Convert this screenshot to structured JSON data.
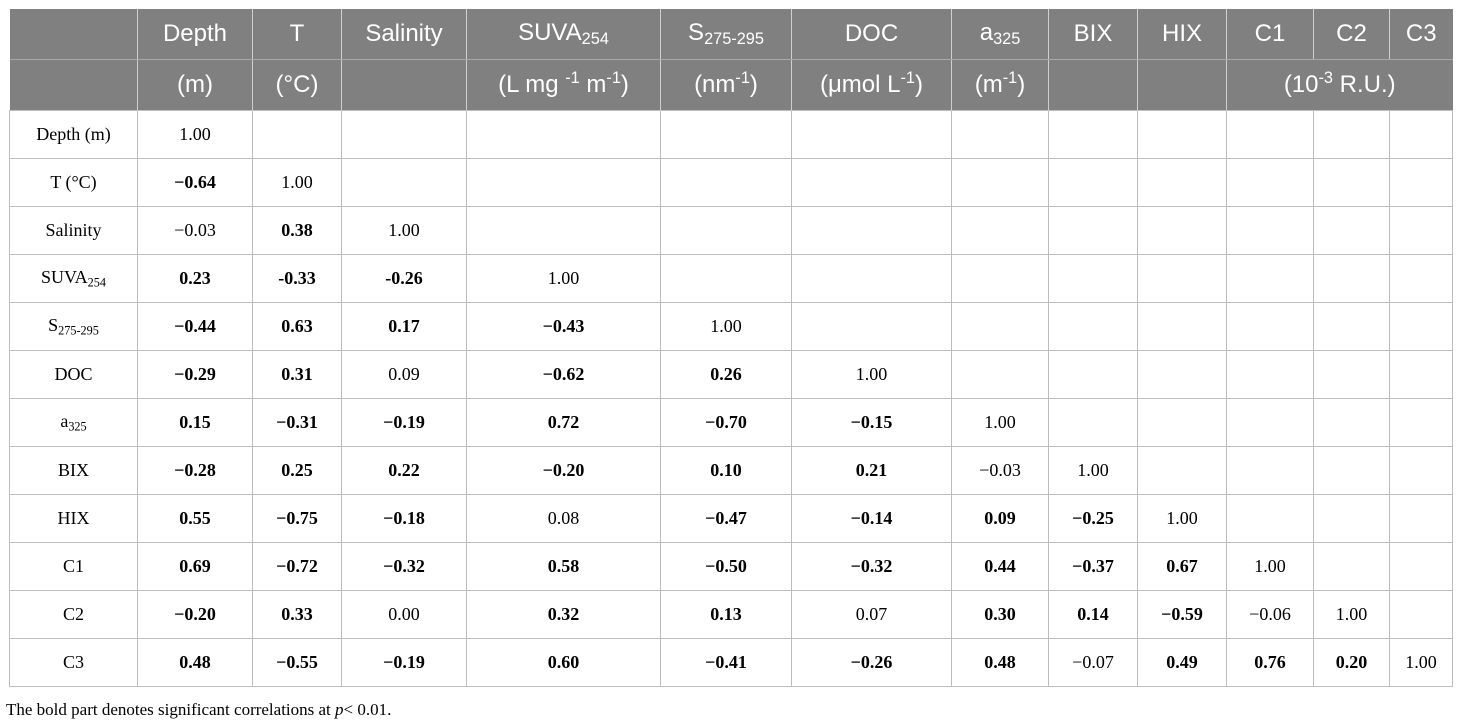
{
  "header": {
    "columns": [
      {
        "name": "Depth",
        "unit": "(m)"
      },
      {
        "name": "T",
        "unit": "(°C)"
      },
      {
        "name": "Salinity",
        "unit": ""
      },
      {
        "name": "SUVA",
        "name_sub": "254",
        "unit": "(L mg",
        "unit_sup": "-1",
        "unit_tail": " m",
        "unit_sup2": "-1",
        "unit_end": ")"
      },
      {
        "name": "S",
        "name_sub": "275-295",
        "unit": "(nm",
        "unit_sup": "-1",
        "unit_end": ")"
      },
      {
        "name": "DOC",
        "unit": "(μmol L",
        "unit_sup": "-1",
        "unit_end": ")"
      },
      {
        "name": "a",
        "name_sub": "325",
        "unit": "(m",
        "unit_sup": "-1",
        "unit_end": ")"
      },
      {
        "name": "BIX",
        "unit": ""
      },
      {
        "name": "HIX",
        "unit": ""
      },
      {
        "name": "C1"
      },
      {
        "name": "C2"
      },
      {
        "name": "C3"
      }
    ],
    "c_unit": "(10",
    "c_unit_sup": "-3",
    "c_unit_end": " R.U.)"
  },
  "rows": [
    {
      "label": "Depth (m)",
      "values": [
        {
          "v": "1.00",
          "b": false
        }
      ]
    },
    {
      "label": "T (°C)",
      "values": [
        {
          "v": "−0.64",
          "b": true
        },
        {
          "v": "1.00",
          "b": false
        }
      ]
    },
    {
      "label": "Salinity",
      "values": [
        {
          "v": "−0.03",
          "b": false
        },
        {
          "v": "0.38",
          "b": true
        },
        {
          "v": "1.00",
          "b": false
        }
      ]
    },
    {
      "label": "SUVA",
      "label_sub": "254",
      "values": [
        {
          "v": "0.23",
          "b": true
        },
        {
          "v": "-0.33",
          "b": true
        },
        {
          "v": "-0.26",
          "b": true
        },
        {
          "v": "1.00",
          "b": false
        }
      ]
    },
    {
      "label": "S",
      "label_sub": "275-295",
      "values": [
        {
          "v": "−0.44",
          "b": true
        },
        {
          "v": "0.63",
          "b": true
        },
        {
          "v": "0.17",
          "b": true
        },
        {
          "v": "−0.43",
          "b": true
        },
        {
          "v": "1.00",
          "b": false
        }
      ]
    },
    {
      "label": "DOC",
      "values": [
        {
          "v": "−0.29",
          "b": true
        },
        {
          "v": "0.31",
          "b": true
        },
        {
          "v": "0.09",
          "b": false
        },
        {
          "v": "−0.62",
          "b": true
        },
        {
          "v": "0.26",
          "b": true
        },
        {
          "v": "1.00",
          "b": false
        }
      ]
    },
    {
      "label": "a",
      "label_sub": "325",
      "values": [
        {
          "v": "0.15",
          "b": true
        },
        {
          "v": "−0.31",
          "b": true
        },
        {
          "v": "−0.19",
          "b": true
        },
        {
          "v": "0.72",
          "b": true
        },
        {
          "v": "−0.70",
          "b": true
        },
        {
          "v": "−0.15",
          "b": true
        },
        {
          "v": "1.00",
          "b": false
        }
      ]
    },
    {
      "label": "BIX",
      "values": [
        {
          "v": "−0.28",
          "b": true
        },
        {
          "v": "0.25",
          "b": true
        },
        {
          "v": "0.22",
          "b": true
        },
        {
          "v": "−0.20",
          "b": true
        },
        {
          "v": "0.10",
          "b": true
        },
        {
          "v": "0.21",
          "b": true
        },
        {
          "v": "−0.03",
          "b": false
        },
        {
          "v": "1.00",
          "b": false
        }
      ]
    },
    {
      "label": "HIX",
      "values": [
        {
          "v": "0.55",
          "b": true
        },
        {
          "v": "−0.75",
          "b": true
        },
        {
          "v": "−0.18",
          "b": true
        },
        {
          "v": "0.08",
          "b": false
        },
        {
          "v": "−0.47",
          "b": true
        },
        {
          "v": "−0.14",
          "b": true
        },
        {
          "v": "0.09",
          "b": true
        },
        {
          "v": "−0.25",
          "b": true
        },
        {
          "v": "1.00",
          "b": false
        }
      ]
    },
    {
      "label": "C1",
      "values": [
        {
          "v": "0.69",
          "b": true
        },
        {
          "v": "−0.72",
          "b": true
        },
        {
          "v": "−0.32",
          "b": true
        },
        {
          "v": "0.58",
          "b": true
        },
        {
          "v": "−0.50",
          "b": true
        },
        {
          "v": "−0.32",
          "b": true
        },
        {
          "v": "0.44",
          "b": true
        },
        {
          "v": "−0.37",
          "b": true
        },
        {
          "v": "0.67",
          "b": true
        },
        {
          "v": "1.00",
          "b": false
        }
      ]
    },
    {
      "label": "C2",
      "values": [
        {
          "v": "−0.20",
          "b": true
        },
        {
          "v": "0.33",
          "b": true
        },
        {
          "v": "0.00",
          "b": false
        },
        {
          "v": "0.32",
          "b": true
        },
        {
          "v": "0.13",
          "b": true
        },
        {
          "v": "0.07",
          "b": false
        },
        {
          "v": "0.30",
          "b": true
        },
        {
          "v": "0.14",
          "b": true
        },
        {
          "v": "−0.59",
          "b": true
        },
        {
          "v": "−0.06",
          "b": false
        },
        {
          "v": "1.00",
          "b": false
        }
      ]
    },
    {
      "label": "C3",
      "values": [
        {
          "v": "0.48",
          "b": true
        },
        {
          "v": "−0.55",
          "b": true
        },
        {
          "v": "−0.19",
          "b": true
        },
        {
          "v": "0.60",
          "b": true
        },
        {
          "v": "−0.41",
          "b": true
        },
        {
          "v": "−0.26",
          "b": true
        },
        {
          "v": "0.48",
          "b": true
        },
        {
          "v": "−0.07",
          "b": false
        },
        {
          "v": "0.49",
          "b": true
        },
        {
          "v": "0.76",
          "b": true
        },
        {
          "v": "0.20",
          "b": true
        },
        {
          "v": "1.00",
          "b": false
        }
      ]
    }
  ],
  "footnote": {
    "text_before": "The bold part denotes significant correlations at ",
    "italic": "p",
    "text_after": "< 0.01."
  }
}
